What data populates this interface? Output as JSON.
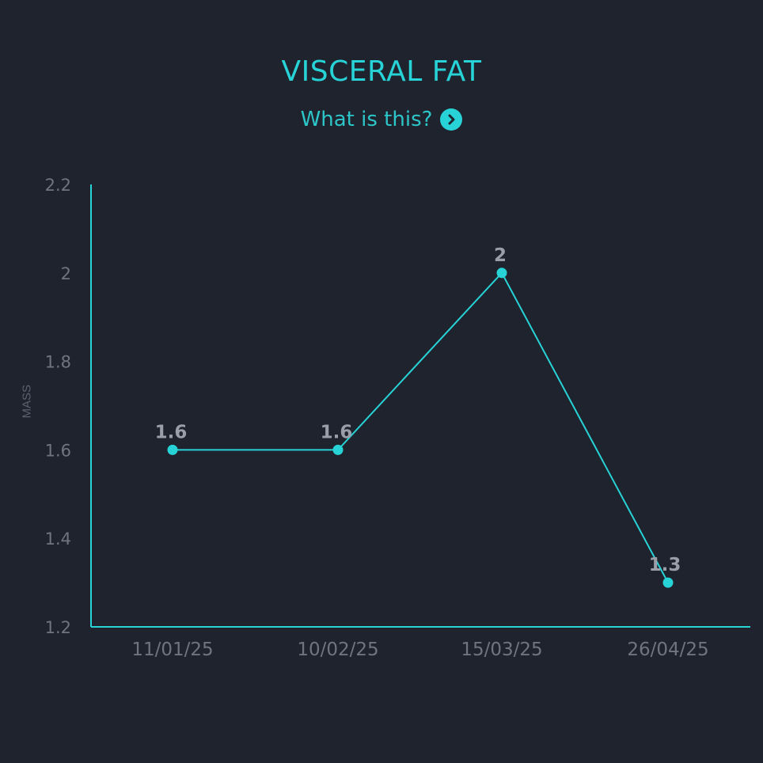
{
  "header": {
    "title": "VISCERAL FAT",
    "help_label": "What is this?",
    "help_icon": "chevron-right-circle-icon"
  },
  "colors": {
    "background": "#1f232d",
    "accent": "#27d3d6",
    "tick_text": "#6f7480",
    "data_label": "#9a9ea8"
  },
  "chart_data": {
    "type": "line",
    "title": "VISCERAL FAT",
    "xlabel": "",
    "ylabel": "MASS",
    "categories": [
      "11/01/25",
      "10/02/25",
      "15/03/25",
      "26/04/25"
    ],
    "series": [
      {
        "values": [
          1.6,
          1.6,
          2,
          1.3
        ]
      }
    ],
    "data_labels": [
      "1.6",
      "1.6",
      "2",
      "1.3"
    ],
    "ylim": [
      1.2,
      2.2
    ],
    "yticks": [
      "1.2",
      "1.4",
      "1.6",
      "1.8",
      "2",
      "2.2"
    ],
    "grid": false,
    "legend": "none"
  }
}
